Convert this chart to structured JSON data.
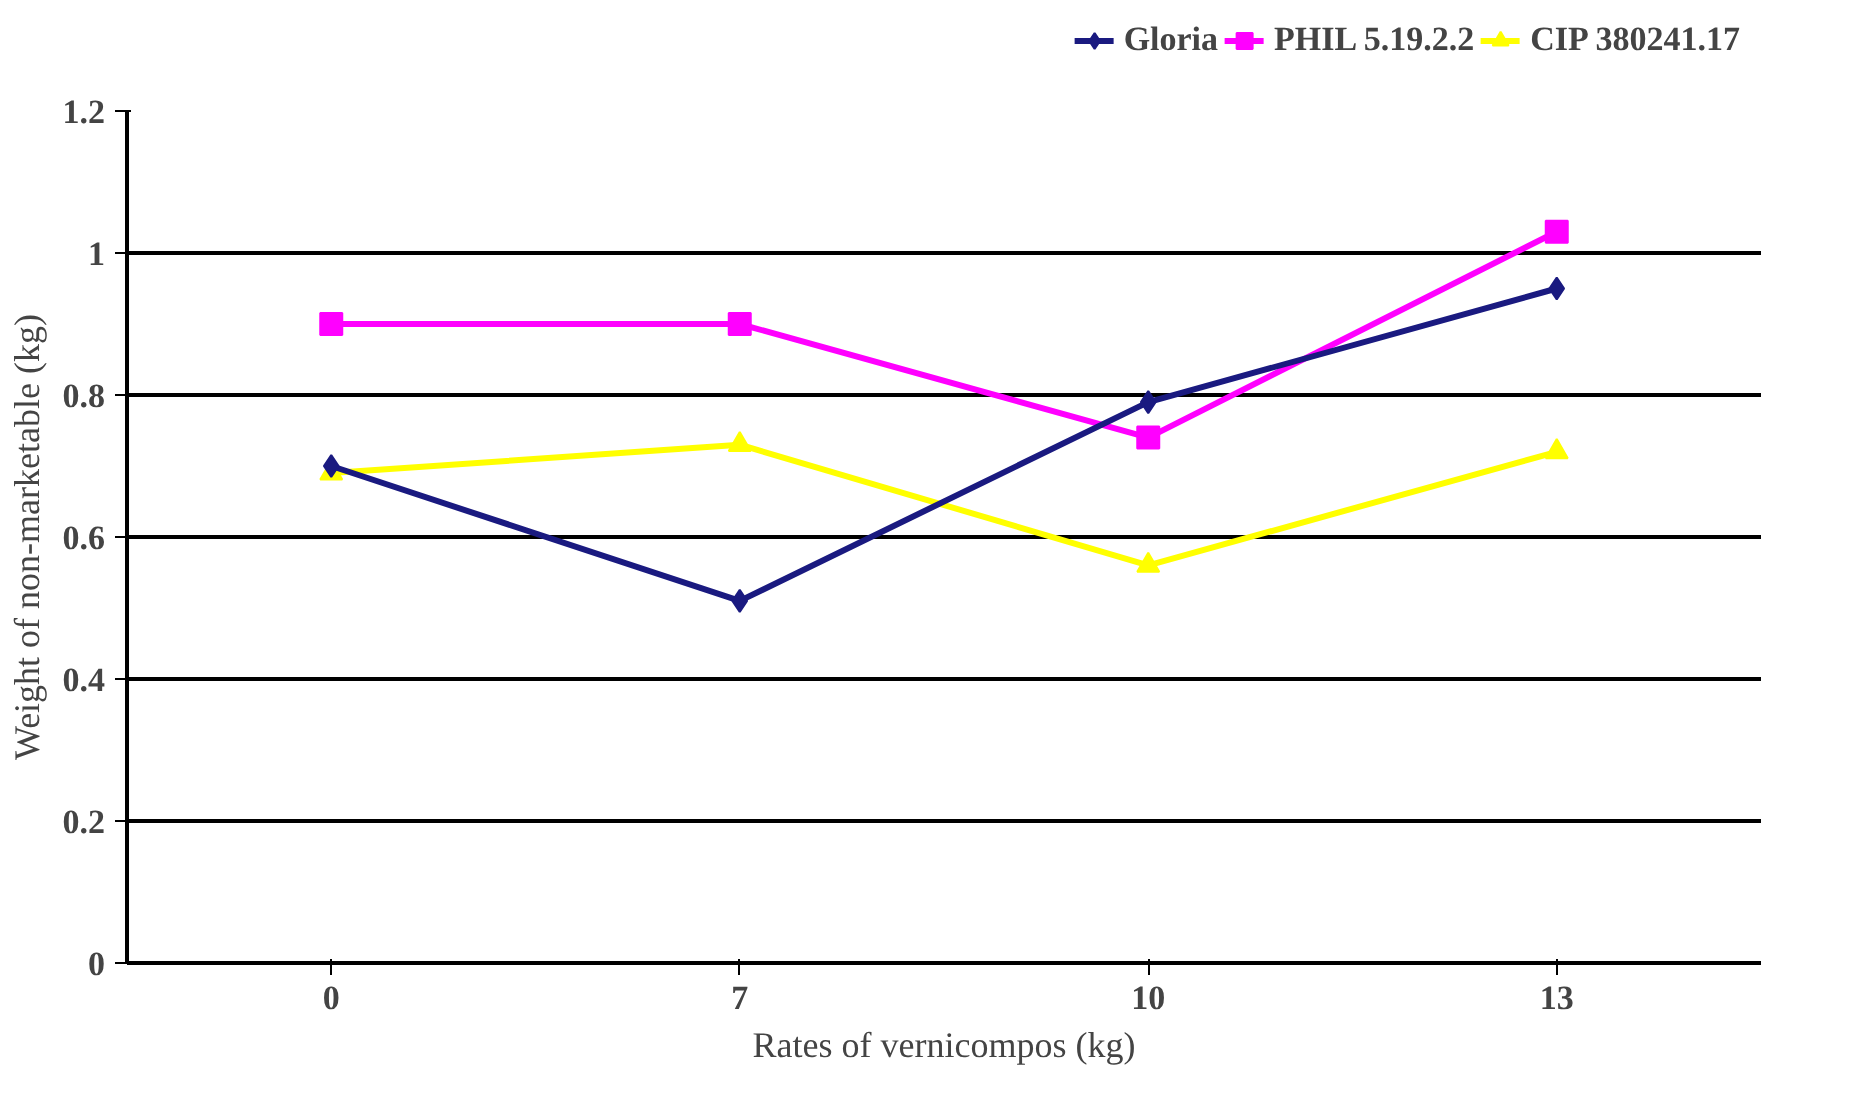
{
  "chart_data": {
    "type": "line",
    "xlabel": "Rates of vernicompos (kg)",
    "ylabel": "Weight of non-marketable (kg)",
    "categories": [
      "0",
      "7",
      "10",
      "13"
    ],
    "series": [
      {
        "name": "Gloria",
        "color": "#1a1a80",
        "marker": "diamond",
        "values": [
          0.7,
          0.51,
          0.79,
          0.95
        ]
      },
      {
        "name": "PHIL 5.19.2.2",
        "color": "#ff00ff",
        "marker": "square",
        "values": [
          0.9,
          0.9,
          0.74,
          1.03
        ]
      },
      {
        "name": "CIP 380241.17",
        "color": "#ffff00",
        "marker": "triangle",
        "values": [
          0.69,
          0.73,
          0.56,
          0.72
        ]
      }
    ],
    "ylim": [
      0,
      1.2
    ],
    "yticks": [
      0,
      0.2,
      0.4,
      0.6,
      0.8,
      1,
      1.2
    ],
    "grid": "y",
    "legend": "top",
    "line_style": "solid"
  }
}
